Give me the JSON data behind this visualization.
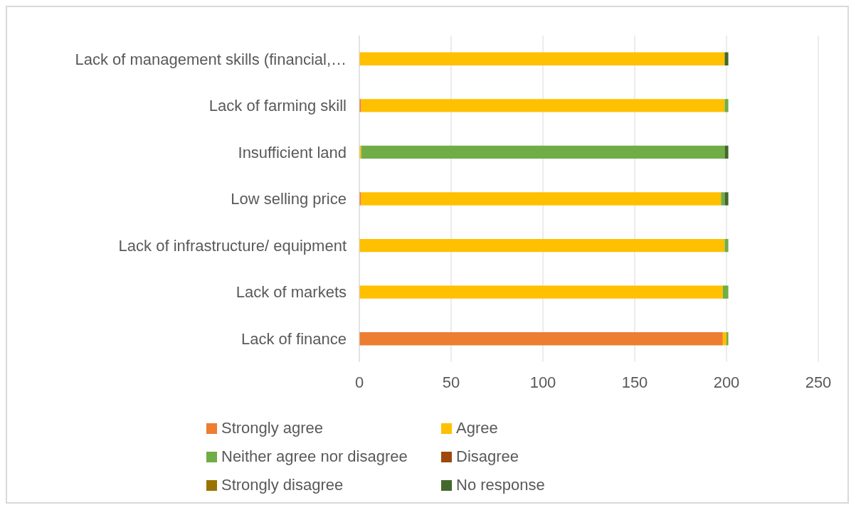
{
  "chart_data": {
    "type": "bar",
    "orientation": "horizontal",
    "stacked": true,
    "categories": [
      "Lack of management skills (financial,…",
      "Lack of farming skill",
      "Insufficient land",
      "Low selling price",
      "Lack of infrastructure/ equipment",
      "Lack of markets",
      "Lack of finance"
    ],
    "series": [
      {
        "name": "Strongly agree",
        "color": "#ed7d31",
        "values": [
          0,
          1,
          0,
          1,
          0,
          0,
          198
        ]
      },
      {
        "name": "Agree",
        "color": "#ffc000",
        "values": [
          199,
          198,
          1,
          196,
          199,
          198,
          2
        ]
      },
      {
        "name": "Neither agree nor disagree",
        "color": "#70ad47",
        "values": [
          0,
          2,
          198,
          2,
          2,
          3,
          1
        ]
      },
      {
        "name": "Disagree",
        "color": "#9e480e",
        "values": [
          0,
          0,
          0,
          0,
          0,
          0,
          0
        ]
      },
      {
        "name": "Strongly disagree",
        "color": "#997300",
        "values": [
          0,
          0,
          0,
          0,
          0,
          0,
          0
        ]
      },
      {
        "name": "No response",
        "color": "#43682b",
        "values": [
          2,
          0,
          2,
          2,
          0,
          0,
          0
        ]
      }
    ],
    "xlim": [
      0,
      250
    ],
    "xticks": [
      0,
      50,
      100,
      150,
      200,
      250
    ],
    "grid": "x",
    "legend": "bottom"
  }
}
